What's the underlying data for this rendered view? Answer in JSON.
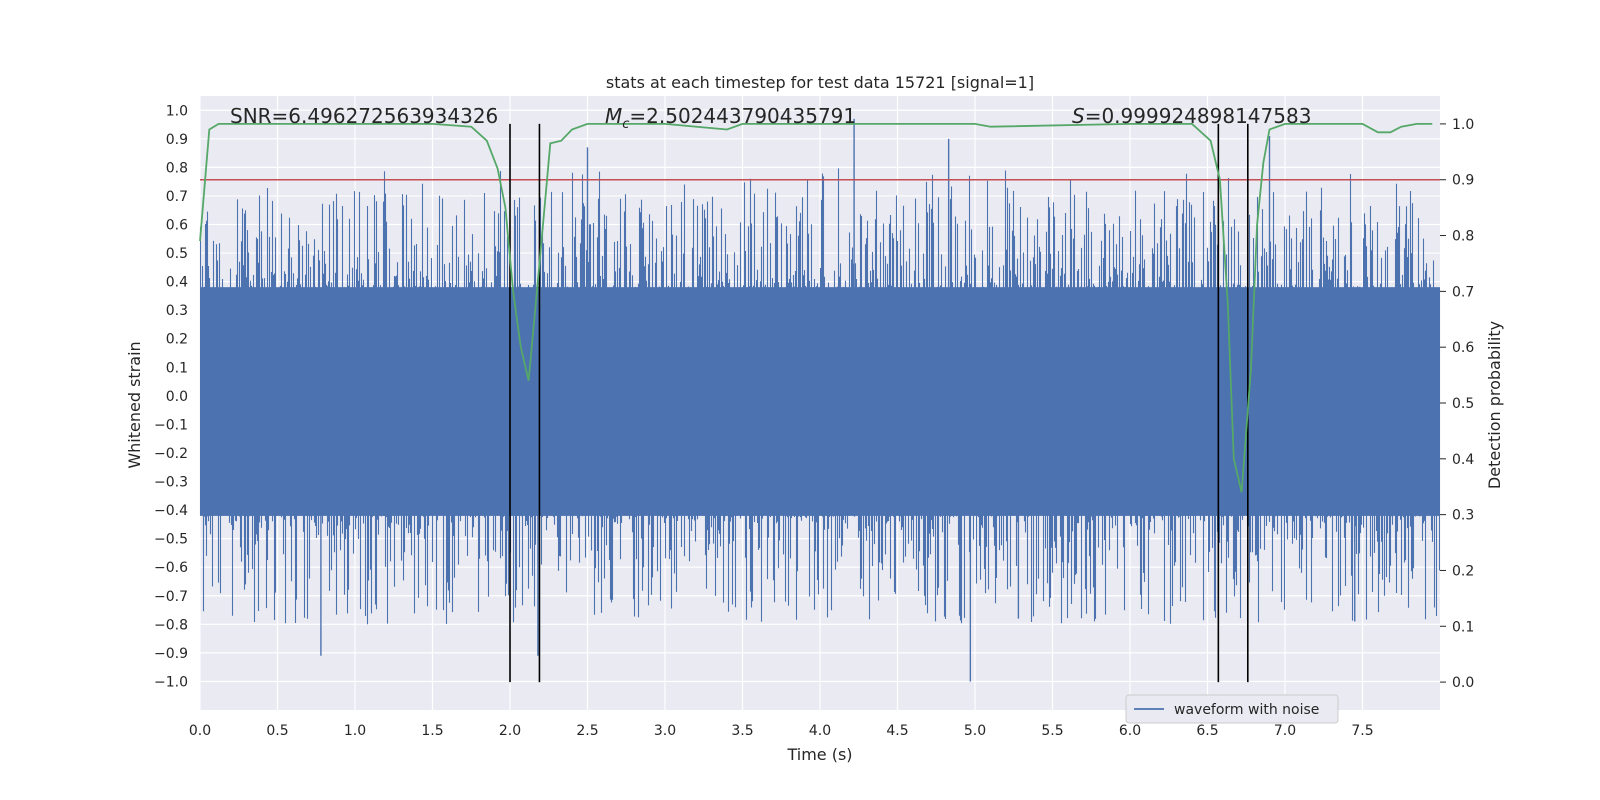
{
  "chart_data": {
    "type": "line",
    "title": "stats at each timestep for test data 15721 [signal=1]",
    "xlabel": "Time (s)",
    "ylabel": "Whitened strain",
    "y2label": "Detection probability",
    "xlim": [
      0.0,
      8.0
    ],
    "ylim": [
      -1.1,
      1.05
    ],
    "y2lim": [
      -0.05,
      1.05
    ],
    "xticks": [
      "0.0",
      "0.5",
      "1.0",
      "1.5",
      "2.0",
      "2.5",
      "3.0",
      "3.5",
      "4.0",
      "4.5",
      "5.0",
      "5.5",
      "6.0",
      "6.5",
      "7.0",
      "7.5"
    ],
    "yticks": [
      "1.0",
      "0.9",
      "0.8",
      "0.7",
      "0.6",
      "0.5",
      "0.4",
      "0.3",
      "0.2",
      "0.1",
      "0.0",
      "−0.1",
      "−0.2",
      "−0.3",
      "−0.4",
      "−0.5",
      "−0.6",
      "−0.7",
      "−0.8",
      "−0.9",
      "−1.0"
    ],
    "y2ticks": [
      "1.0",
      "0.9",
      "0.8",
      "0.7",
      "0.6",
      "0.5",
      "0.4",
      "0.3",
      "0.2",
      "0.1",
      "0.0"
    ],
    "annotations": {
      "snr": "SNR=6.496272563934326",
      "mc_symbol": "M",
      "mc_sub": "c",
      "mc_value": "=2.502443790435791",
      "s_symbol": "S",
      "s_value": "=0.999924898147583"
    },
    "legend": {
      "label": "waveform with noise",
      "location": "lower-right"
    },
    "threshold": {
      "value": 0.9,
      "color": "#c44e52"
    },
    "vertical_lines": [
      2.0,
      2.19,
      6.57,
      6.76
    ],
    "series": [
      {
        "name": "waveform with noise",
        "color": "#4c72b0",
        "noise_envelope": {
          "core_low": -0.42,
          "core_high": 0.38,
          "peak_max": 0.97,
          "peak_min": -1.0
        },
        "peaks": [
          {
            "x": 0.78,
            "y": -0.91
          },
          {
            "x": 2.18,
            "y": -0.91
          },
          {
            "x": 2.5,
            "y": 0.87
          },
          {
            "x": 4.22,
            "y": 0.97
          },
          {
            "x": 4.83,
            "y": 0.9
          },
          {
            "x": 4.97,
            "y": -1.0
          },
          {
            "x": 6.9,
            "y": 0.91
          },
          {
            "x": 5.28,
            "y": -0.78
          },
          {
            "x": 7.45,
            "y": -0.79
          }
        ]
      },
      {
        "name": "detection probability",
        "color": "#55a868",
        "axis": "y2",
        "x": [
          0.0,
          0.06,
          0.12,
          0.2,
          0.5,
          1.0,
          1.5,
          1.75,
          1.85,
          1.92,
          1.97,
          2.02,
          2.07,
          2.12,
          2.15,
          2.2,
          2.26,
          2.33,
          2.4,
          2.5,
          3.0,
          3.4,
          3.5,
          4.0,
          5.0,
          5.1,
          6.0,
          6.4,
          6.52,
          6.58,
          6.63,
          6.67,
          6.72,
          6.78,
          6.82,
          6.86,
          6.9,
          7.0,
          7.5,
          7.6,
          7.68,
          7.75,
          7.85,
          7.95
        ],
        "y": [
          0.79,
          0.99,
          1.0,
          1.0,
          1.0,
          1.0,
          1.0,
          0.995,
          0.97,
          0.92,
          0.85,
          0.7,
          0.6,
          0.54,
          0.63,
          0.78,
          0.965,
          0.97,
          0.99,
          1.0,
          1.0,
          0.99,
          1.0,
          1.0,
          1.0,
          0.995,
          1.0,
          1.0,
          0.97,
          0.9,
          0.68,
          0.4,
          0.34,
          0.56,
          0.82,
          0.93,
          0.99,
          1.0,
          1.0,
          0.985,
          0.985,
          0.995,
          1.0,
          1.0
        ]
      }
    ]
  }
}
